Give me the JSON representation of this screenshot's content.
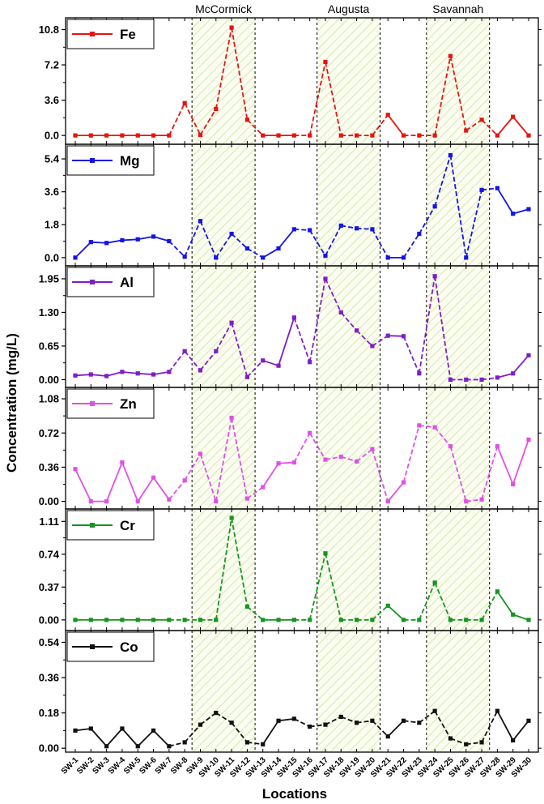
{
  "chart_data": {
    "type": "line",
    "xlabel": "Locations",
    "ylabel": "Concentration (mg/L)",
    "categories": [
      "SW-1",
      "SW-2",
      "SW-3",
      "SW-4",
      "SW-5",
      "SW-6",
      "SW-7",
      "SW-8",
      "SW-9",
      "SW-10",
      "SW-11",
      "SW-12",
      "SW-13",
      "SW-14",
      "SW-15",
      "SW-16",
      "SW-17",
      "SW-18",
      "SW-19",
      "SW-20",
      "SW-21",
      "SW-22",
      "SW-23",
      "SW-24",
      "SW-25",
      "SW-26",
      "SW-27",
      "SW-28",
      "SW-29",
      "SW-30"
    ],
    "regions": [
      {
        "label": "McCormick",
        "from": 7,
        "to": 11
      },
      {
        "label": "Augusta",
        "from": 15,
        "to": 19
      },
      {
        "label": "Savannah",
        "from": 22,
        "to": 26
      }
    ],
    "panels": [
      {
        "name": "Fe",
        "color": "#e8140f",
        "ylim": [
          -0.9,
          12.0
        ],
        "ticks": [
          "0.0",
          "3.6",
          "7.2",
          "10.8"
        ],
        "tickValues": [
          0,
          3.6,
          7.2,
          10.8
        ],
        "values": [
          0,
          0,
          0,
          0,
          0,
          0,
          0,
          3.3,
          0.05,
          2.7,
          11.0,
          1.6,
          0,
          0,
          0,
          0,
          7.5,
          0,
          0,
          0,
          2.1,
          0,
          0,
          0,
          8.1,
          0.5,
          1.6,
          0,
          1.9,
          0
        ]
      },
      {
        "name": "Mg",
        "color": "#1414e8",
        "ylim": [
          -0.45,
          6.2
        ],
        "ticks": [
          "0.0",
          "1.8",
          "3.6",
          "5.4"
        ],
        "tickValues": [
          0,
          1.8,
          3.6,
          5.4
        ],
        "values": [
          0,
          0.85,
          0.8,
          0.95,
          1.0,
          1.15,
          0.9,
          0.05,
          2.0,
          0,
          1.3,
          0.5,
          0,
          0.5,
          1.55,
          1.5,
          0.1,
          1.75,
          1.6,
          1.55,
          0,
          0,
          1.3,
          2.8,
          5.6,
          0,
          3.7,
          3.8,
          2.4,
          2.65
        ]
      },
      {
        "name": "Al",
        "color": "#7f1ec8",
        "ylim": [
          -0.15,
          2.2
        ],
        "ticks": [
          "0.00",
          "0.65",
          "1.30",
          "1.95"
        ],
        "tickValues": [
          0,
          0.65,
          1.3,
          1.95
        ],
        "values": [
          0.08,
          0.1,
          0.07,
          0.15,
          0.12,
          0.1,
          0.15,
          0.55,
          0.18,
          0.55,
          1.1,
          0.05,
          0.37,
          0.27,
          1.2,
          0.34,
          1.95,
          1.3,
          0.95,
          0.65,
          0.85,
          0.84,
          0.12,
          2.0,
          0,
          0,
          0,
          0.04,
          0.12,
          0.47
        ]
      },
      {
        "name": "Zn",
        "color": "#e050e8",
        "ylim": [
          -0.08,
          1.2
        ],
        "ticks": [
          "0.00",
          "0.36",
          "0.72",
          "1.08"
        ],
        "tickValues": [
          0,
          0.36,
          0.72,
          1.08
        ],
        "values": [
          0.34,
          0,
          0,
          0.41,
          0,
          0.25,
          0.02,
          0.22,
          0.5,
          0,
          0.88,
          0.03,
          0.15,
          0.4,
          0.41,
          0.72,
          0.44,
          0.47,
          0.42,
          0.55,
          0,
          0.2,
          0.8,
          0.78,
          0.58,
          0,
          0.02,
          0.58,
          0.18,
          0.65
        ]
      },
      {
        "name": "Cr",
        "color": "#14961e",
        "ylim": [
          -0.12,
          1.25
        ],
        "ticks": [
          "0.00",
          "0.37",
          "0.74",
          "1.11"
        ],
        "tickValues": [
          0,
          0.37,
          0.74,
          1.11
        ],
        "values": [
          0,
          0,
          0,
          0,
          0,
          0,
          0,
          0,
          0,
          0,
          1.15,
          0.15,
          0,
          0,
          0,
          0,
          0.75,
          0,
          0,
          0,
          0.16,
          0,
          0,
          0.42,
          0,
          0,
          0,
          0.32,
          0.06,
          0
        ]
      },
      {
        "name": "Co",
        "color": "#111111",
        "ylim": [
          -0.02,
          0.6
        ],
        "ticks": [
          "0.00",
          "0.18",
          "0.36",
          "0.54"
        ],
        "tickValues": [
          0,
          0.18,
          0.36,
          0.54
        ],
        "values": [
          0.09,
          0.1,
          0.01,
          0.1,
          0.01,
          0.09,
          0.01,
          0.03,
          0.12,
          0.18,
          0.13,
          0.03,
          0.02,
          0.14,
          0.15,
          0.11,
          0.12,
          0.16,
          0.13,
          0.14,
          0.06,
          0.14,
          0.13,
          0.19,
          0.05,
          0.02,
          0.03,
          0.19,
          0.04,
          0.14
        ]
      }
    ]
  }
}
